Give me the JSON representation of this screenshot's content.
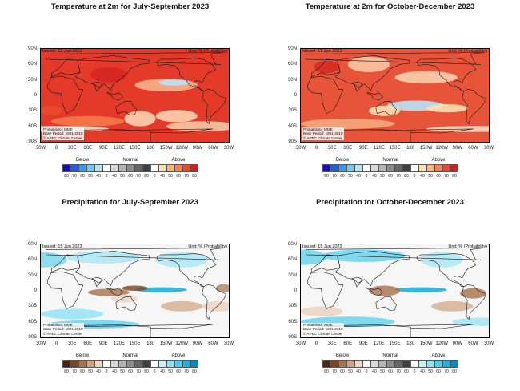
{
  "panels": [
    {
      "title": "Temperature at 2m for July-September 2023",
      "variable": "temperature",
      "season": "jas"
    },
    {
      "title": "Temperature at 2m for October-December 2023",
      "variable": "temperature",
      "season": "ond"
    },
    {
      "title": "Precipitation for July-September 2023",
      "variable": "precipitation",
      "season": "jas"
    },
    {
      "title": "Precipitation for October-December 2023",
      "variable": "precipitation",
      "season": "ond"
    }
  ],
  "map_text": {
    "issued": "Issued: 15 Jun 2023",
    "unit": "Unit: % (Probability)",
    "info_lines": [
      "Probabilistic MME",
      "Base Period: 1991-2010",
      "© APEC Climate Center"
    ]
  },
  "lat_labels": [
    "90N",
    "60N",
    "30N",
    "0",
    "30S",
    "60S",
    "90S"
  ],
  "lon_labels": [
    "30W",
    "0",
    "30E",
    "60E",
    "90E",
    "120E",
    "150E",
    "180",
    "150W",
    "120W",
    "90W",
    "60W",
    "30W"
  ],
  "legend": {
    "groups": [
      "Below",
      "Normal",
      "Above"
    ],
    "numbers": [
      "80",
      "70",
      "60",
      "50",
      "40",
      "0",
      "40",
      "50",
      "60",
      "70",
      "80",
      "0",
      "40",
      "50",
      "60",
      "70",
      "80"
    ],
    "temperature_colors": [
      "#1010c0",
      "#2060e0",
      "#3a9ae8",
      "#74c6f0",
      "#b7e3f7",
      "#ffffff",
      "#d9d9d9",
      "#b3b3b3",
      "#8c8c8c",
      "#666666",
      "#3f3f3f",
      "#ffffff",
      "#fde0b0",
      "#fbb37e",
      "#f5824f",
      "#ea4a2f",
      "#d21f1f"
    ],
    "precipitation_colors": [
      "#4a2410",
      "#7a4520",
      "#a8714a",
      "#cfa381",
      "#ecd6c4",
      "#ffffff",
      "#d9d9d9",
      "#b3b3b3",
      "#8c8c8c",
      "#666666",
      "#3f3f3f",
      "#ffffff",
      "#c8f1f9",
      "#8ee2f5",
      "#4fcdec",
      "#1fb1dd",
      "#0b8cbc"
    ]
  }
}
